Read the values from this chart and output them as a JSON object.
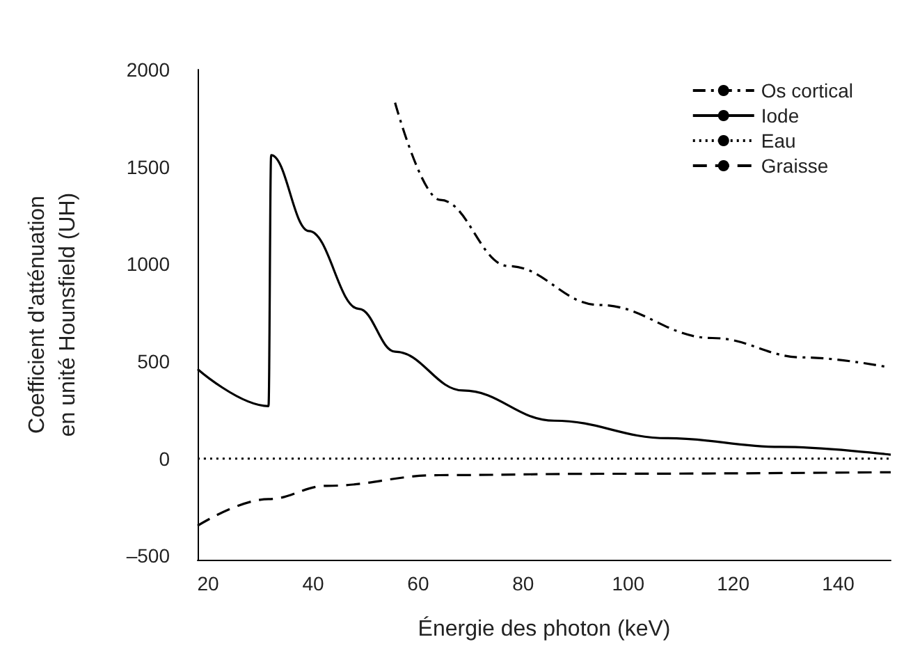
{
  "chart_data": {
    "type": "line",
    "xlabel": "Énergie des photon (keV)",
    "ylabel": "Coefficient d'atténuation\nen unité Hounsfield (UH)",
    "xlim": [
      18,
      150
    ],
    "xticks": [
      20,
      40,
      60,
      80,
      100,
      120,
      140
    ],
    "ylim": [
      -520,
      2000
    ],
    "yticks": [
      {
        "value": -500,
        "label": "–500"
      },
      0,
      500,
      1000,
      1500,
      2000
    ],
    "grid": false,
    "legend": "top right",
    "marker": "none",
    "series": [
      {
        "name": "Os cortical",
        "color": "#000000",
        "line_style": "dashdot",
        "x": [
          55.6,
          64.2,
          77.2,
          94.5,
          116,
          133.4,
          149.5
        ],
        "values": [
          1830,
          1330,
          990,
          790,
          620,
          520,
          470
        ]
      },
      {
        "name": "Iode",
        "color": "#000000",
        "line_style": "solid",
        "x": [
          18,
          31.5,
          32,
          39.2,
          48.7,
          55.6,
          68.6,
          85.9,
          107.5,
          129,
          150
        ],
        "values": [
          460,
          270,
          1560,
          1170,
          770,
          550,
          350,
          195,
          105,
          60,
          20
        ]
      },
      {
        "name": "Eau",
        "color": "#000000",
        "line_style": "dotted",
        "x": [
          18,
          150
        ],
        "values": [
          0,
          0
        ]
      },
      {
        "name": "Graisse",
        "color": "#000000",
        "line_style": "dashed",
        "x": [
          18,
          31.5,
          42.6,
          64,
          94.5,
          150
        ],
        "values": [
          -345,
          -208,
          -140,
          -85,
          -78,
          -70
        ]
      }
    ]
  }
}
